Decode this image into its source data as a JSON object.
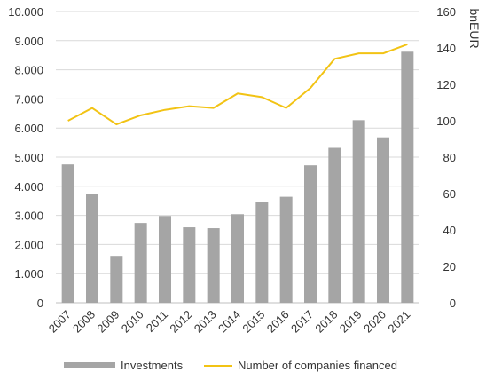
{
  "chart_data": {
    "type": "bar",
    "categories": [
      "2007",
      "2008",
      "2009",
      "2010",
      "2011",
      "2012",
      "2013",
      "2014",
      "2015",
      "2016",
      "2017",
      "2018",
      "2019",
      "2020",
      "2021"
    ],
    "series": [
      {
        "name": "Investments",
        "type": "bar",
        "axis": "left",
        "color": "#a5a5a5",
        "values": [
          4750,
          3740,
          1610,
          2740,
          2980,
          2590,
          2560,
          3040,
          3470,
          3640,
          4720,
          5320,
          6270,
          5680,
          8620
        ]
      },
      {
        "name": "Number of companies financed",
        "type": "line",
        "axis": "right",
        "color": "#f2c314",
        "values": [
          100,
          107,
          98,
          103,
          106,
          108,
          107,
          115,
          113,
          107,
          118,
          134,
          137,
          137,
          142
        ]
      }
    ],
    "y_left": {
      "ylim": [
        0,
        10000
      ],
      "ticks": [
        0,
        1000,
        2000,
        3000,
        4000,
        5000,
        6000,
        7000,
        8000,
        9000,
        10000
      ],
      "tick_labels": [
        "0",
        "1.000",
        "2.000",
        "3.000",
        "4.000",
        "5.000",
        "6.000",
        "7.000",
        "8.000",
        "9.000",
        "10.000"
      ]
    },
    "y_right": {
      "ylabel": "bnEUR",
      "ylim": [
        0,
        160
      ],
      "ticks": [
        0,
        20,
        40,
        60,
        80,
        100,
        120,
        140,
        160
      ],
      "tick_labels": [
        "0",
        "20",
        "40",
        "60",
        "80",
        "100",
        "120",
        "140",
        "160"
      ]
    },
    "grid": true,
    "legend_position": "bottom",
    "gridline_color": "#d9d9d9",
    "axis_color": "#bfbfbf"
  }
}
